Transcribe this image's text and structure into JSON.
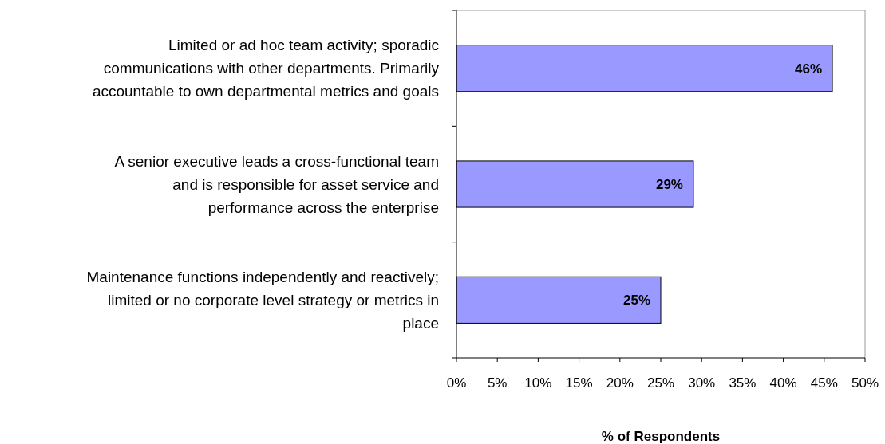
{
  "chart_data": {
    "type": "bar",
    "orientation": "horizontal",
    "xlabel": "% of Respondents",
    "categories": [
      "Limited or ad hoc team activity; sporadic communications with other departments. Primarily accountable to own departmental metrics and goals",
      "A senior executive leads a cross-functional team and is responsible for asset service and performance across the enterprise",
      "Maintenance functions independently and reactively; limited or no corporate level strategy or metrics in place"
    ],
    "values": [
      46,
      29,
      25
    ],
    "color": "#9999ff",
    "xlim": [
      0,
      50
    ],
    "xticks": [
      {
        "value": 0,
        "label": "0%"
      },
      {
        "value": 5,
        "label": "5%"
      },
      {
        "value": 10,
        "label": "10%"
      },
      {
        "value": 15,
        "label": "15%"
      },
      {
        "value": 20,
        "label": "20%"
      },
      {
        "value": 25,
        "label": "25%"
      },
      {
        "value": 30,
        "label": "30%"
      },
      {
        "value": 35,
        "label": "35%"
      },
      {
        "value": 40,
        "label": "40%"
      },
      {
        "value": 45,
        "label": "45%"
      },
      {
        "value": 50,
        "label": "50%"
      }
    ],
    "value_labels": [
      "46%",
      "29%",
      "25%"
    ],
    "grid": false
  }
}
